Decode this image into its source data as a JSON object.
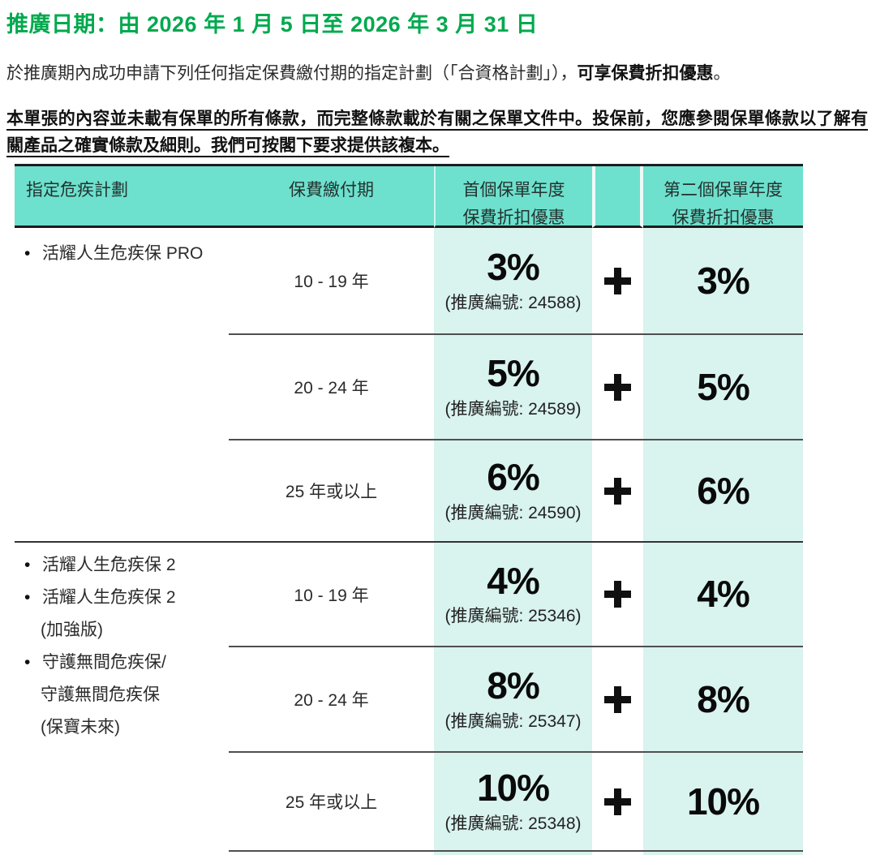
{
  "header": {
    "promo_period": "推廣日期：由 2026 年 1 月 5 日至 2026 年 3 月 31 日"
  },
  "intro": {
    "normal": "於推廣期內成功申請下列任何指定保費繳付期的指定計劃（「合資格計劃」），",
    "bold": "可享保費折扣優惠",
    "period": "。"
  },
  "disclaimer": {
    "text": "本單張的內容並未載有保單的所有條款，而完整條款載於有關之保單文件中。投保前，您應參閱保單條款以了解有關產品之確實條款及細則。我們可按閣下要求提供該複本。"
  },
  "colors": {
    "accent_green": "#00A94E",
    "header_teal": "#6EE0CE",
    "light_teal": "#D9F3EF",
    "text_dark": "#1f1f1f"
  },
  "table": {
    "bullet": "•",
    "plus_sign": "+",
    "headers": {
      "plan": "指定危疾計劃",
      "payment_term": "保費繳付期",
      "first_year_line1": "首個保單年度",
      "first_year_line2": "保費折扣優惠",
      "second_year_line1": "第二個保單年度",
      "second_year_line2": "保費折扣優惠"
    },
    "groups": [
      {
        "plans": [
          {
            "lines": [
              "活耀人生危疾保 PRO"
            ]
          }
        ],
        "rows": [
          {
            "term": "10 - 19 年",
            "first_discount": "3%",
            "promo_code": "(推廣編號: 24588)",
            "second_discount": "3%"
          },
          {
            "term": "20 - 24 年",
            "first_discount": "5%",
            "promo_code": "(推廣編號: 24589)",
            "second_discount": "5%"
          },
          {
            "term": "25 年或以上",
            "first_discount": "6%",
            "promo_code": "(推廣編號: 24590)",
            "second_discount": "6%"
          }
        ]
      },
      {
        "plans": [
          {
            "lines": [
              "活耀人生危疾保 2"
            ]
          },
          {
            "lines": [
              "活耀人生危疾保 2",
              "(加強版)"
            ]
          },
          {
            "lines": [
              "守護無間危疾保/",
              "守護無間危疾保",
              "(保寶未來)"
            ]
          }
        ],
        "rows": [
          {
            "term": "10 - 19 年",
            "first_discount": "4%",
            "promo_code": "(推廣編號: 25346)",
            "second_discount": "4%"
          },
          {
            "term": "20 - 24 年",
            "first_discount": "8%",
            "promo_code": "(推廣編號: 25347)",
            "second_discount": "8%"
          },
          {
            "term": "25 年或以上",
            "first_discount": "10%",
            "promo_code": "(推廣編號: 25348)",
            "second_discount": "10%"
          }
        ]
      }
    ]
  }
}
